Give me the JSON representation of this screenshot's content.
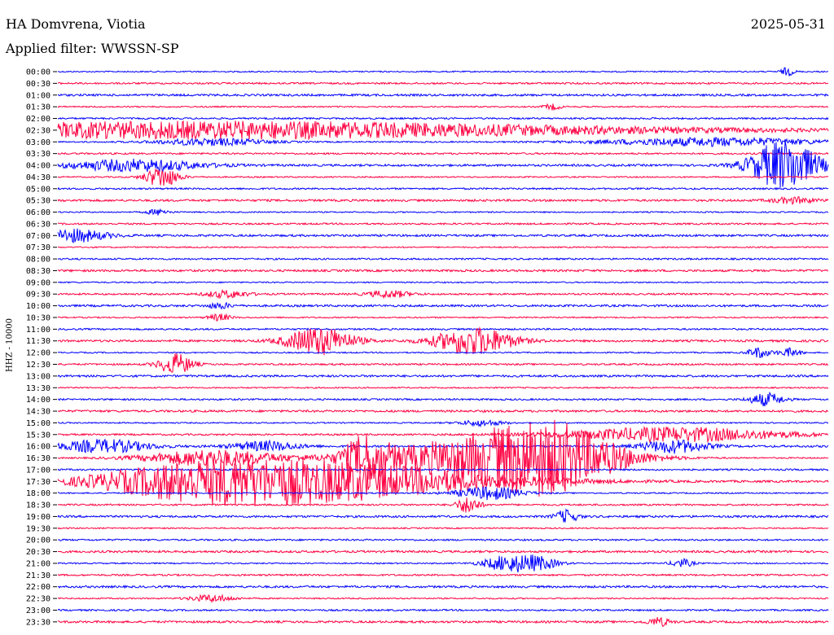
{
  "header": {
    "station": "HA Domvrena, Viotia",
    "date": "2025-05-31",
    "filter": "Applied filter: WWSSN-SP"
  },
  "chart_data": {
    "type": "line",
    "ylabel": "HHZ - 10000",
    "colors": [
      "#0000ff",
      "#ff0040"
    ],
    "rows": [
      "00:00",
      "00:30",
      "01:00",
      "01:30",
      "02:00",
      "02:30",
      "03:00",
      "03:30",
      "04:00",
      "04:30",
      "05:00",
      "05:30",
      "06:00",
      "06:30",
      "07:00",
      "07:30",
      "08:00",
      "08:30",
      "09:00",
      "09:30",
      "10:00",
      "10:30",
      "11:00",
      "11:30",
      "12:00",
      "12:30",
      "13:00",
      "13:30",
      "14:00",
      "14:30",
      "15:00",
      "15:30",
      "16:00",
      "16:30",
      "17:00",
      "17:30",
      "18:00",
      "18:30",
      "19:00",
      "19:30",
      "20:00",
      "20:30",
      "21:00",
      "21:30",
      "22:00",
      "22:30",
      "23:00",
      "23:30"
    ],
    "x_range_minutes": [
      0,
      30
    ],
    "events": [
      {
        "row": "00:00",
        "t": 0.947,
        "amp": 0.35,
        "dur": 0.006
      },
      {
        "row": "01:30",
        "t": 0.642,
        "amp": 0.25,
        "dur": 0.008
      },
      {
        "row": "02:30",
        "t": 0.1,
        "amp": 0.35,
        "dur": 0.35
      },
      {
        "row": "02:30",
        "t": 0.3,
        "amp": 0.4,
        "dur": 0.35
      },
      {
        "row": "03:00",
        "t": 0.2,
        "amp": 0.3,
        "dur": 0.05
      },
      {
        "row": "03:00",
        "t": 0.85,
        "amp": 0.35,
        "dur": 0.1
      },
      {
        "row": "04:00",
        "t": 0.1,
        "amp": 0.5,
        "dur": 0.06
      },
      {
        "row": "04:00",
        "t": 0.943,
        "amp": 2.2,
        "dur": 0.03
      },
      {
        "row": "04:30",
        "t": 0.135,
        "amp": 0.9,
        "dur": 0.015
      },
      {
        "row": "05:30",
        "t": 0.955,
        "amp": 0.25,
        "dur": 0.02
      },
      {
        "row": "06:00",
        "t": 0.13,
        "amp": 0.25,
        "dur": 0.01
      },
      {
        "row": "07:00",
        "t": 0.02,
        "amp": 0.55,
        "dur": 0.03
      },
      {
        "row": "09:30",
        "t": 0.22,
        "amp": 0.3,
        "dur": 0.02
      },
      {
        "row": "09:30",
        "t": 0.43,
        "amp": 0.3,
        "dur": 0.02
      },
      {
        "row": "10:00",
        "t": 0.21,
        "amp": 0.25,
        "dur": 0.01
      },
      {
        "row": "10:30",
        "t": 0.21,
        "amp": 0.3,
        "dur": 0.01
      },
      {
        "row": "11:30",
        "t": 0.34,
        "amp": 1.2,
        "dur": 0.03
      },
      {
        "row": "11:30",
        "t": 0.54,
        "amp": 1.2,
        "dur": 0.035
      },
      {
        "row": "12:00",
        "t": 0.91,
        "amp": 0.45,
        "dur": 0.01
      },
      {
        "row": "12:00",
        "t": 0.95,
        "amp": 0.35,
        "dur": 0.01
      },
      {
        "row": "12:30",
        "t": 0.153,
        "amp": 0.9,
        "dur": 0.015
      },
      {
        "row": "14:00",
        "t": 0.92,
        "amp": 0.55,
        "dur": 0.015
      },
      {
        "row": "15:00",
        "t": 0.55,
        "amp": 0.25,
        "dur": 0.02
      },
      {
        "row": "15:30",
        "t": 0.8,
        "amp": 0.6,
        "dur": 0.1
      },
      {
        "row": "16:00",
        "t": 0.06,
        "amp": 0.55,
        "dur": 0.04
      },
      {
        "row": "16:00",
        "t": 0.27,
        "amp": 0.4,
        "dur": 0.03
      },
      {
        "row": "16:00",
        "t": 0.8,
        "amp": 0.55,
        "dur": 0.03
      },
      {
        "row": "16:30",
        "t": 0.2,
        "amp": 0.7,
        "dur": 0.06
      },
      {
        "row": "16:30",
        "t": 0.4,
        "amp": 1.6,
        "dur": 0.02
      },
      {
        "row": "16:30",
        "t": 0.55,
        "amp": 1.6,
        "dur": 0.1
      },
      {
        "row": "16:30",
        "t": 0.64,
        "amp": 2.2,
        "dur": 0.06
      },
      {
        "row": "17:30",
        "t": 0.15,
        "amp": 0.7,
        "dur": 0.08
      },
      {
        "row": "17:30",
        "t": 0.25,
        "amp": 0.8,
        "dur": 0.1
      },
      {
        "row": "17:30",
        "t": 0.37,
        "amp": 1.3,
        "dur": 0.15
      },
      {
        "row": "18:00",
        "t": 0.56,
        "amp": 0.55,
        "dur": 0.03
      },
      {
        "row": "18:30",
        "t": 0.533,
        "amp": 0.75,
        "dur": 0.01
      },
      {
        "row": "19:00",
        "t": 0.66,
        "amp": 0.55,
        "dur": 0.01
      },
      {
        "row": "21:00",
        "t": 0.58,
        "amp": 0.6,
        "dur": 0.02
      },
      {
        "row": "21:00",
        "t": 0.62,
        "amp": 0.6,
        "dur": 0.02
      },
      {
        "row": "21:00",
        "t": 0.81,
        "amp": 0.35,
        "dur": 0.01
      },
      {
        "row": "22:30",
        "t": 0.2,
        "amp": 0.3,
        "dur": 0.02
      },
      {
        "row": "23:30",
        "t": 0.78,
        "amp": 0.35,
        "dur": 0.01
      }
    ]
  }
}
